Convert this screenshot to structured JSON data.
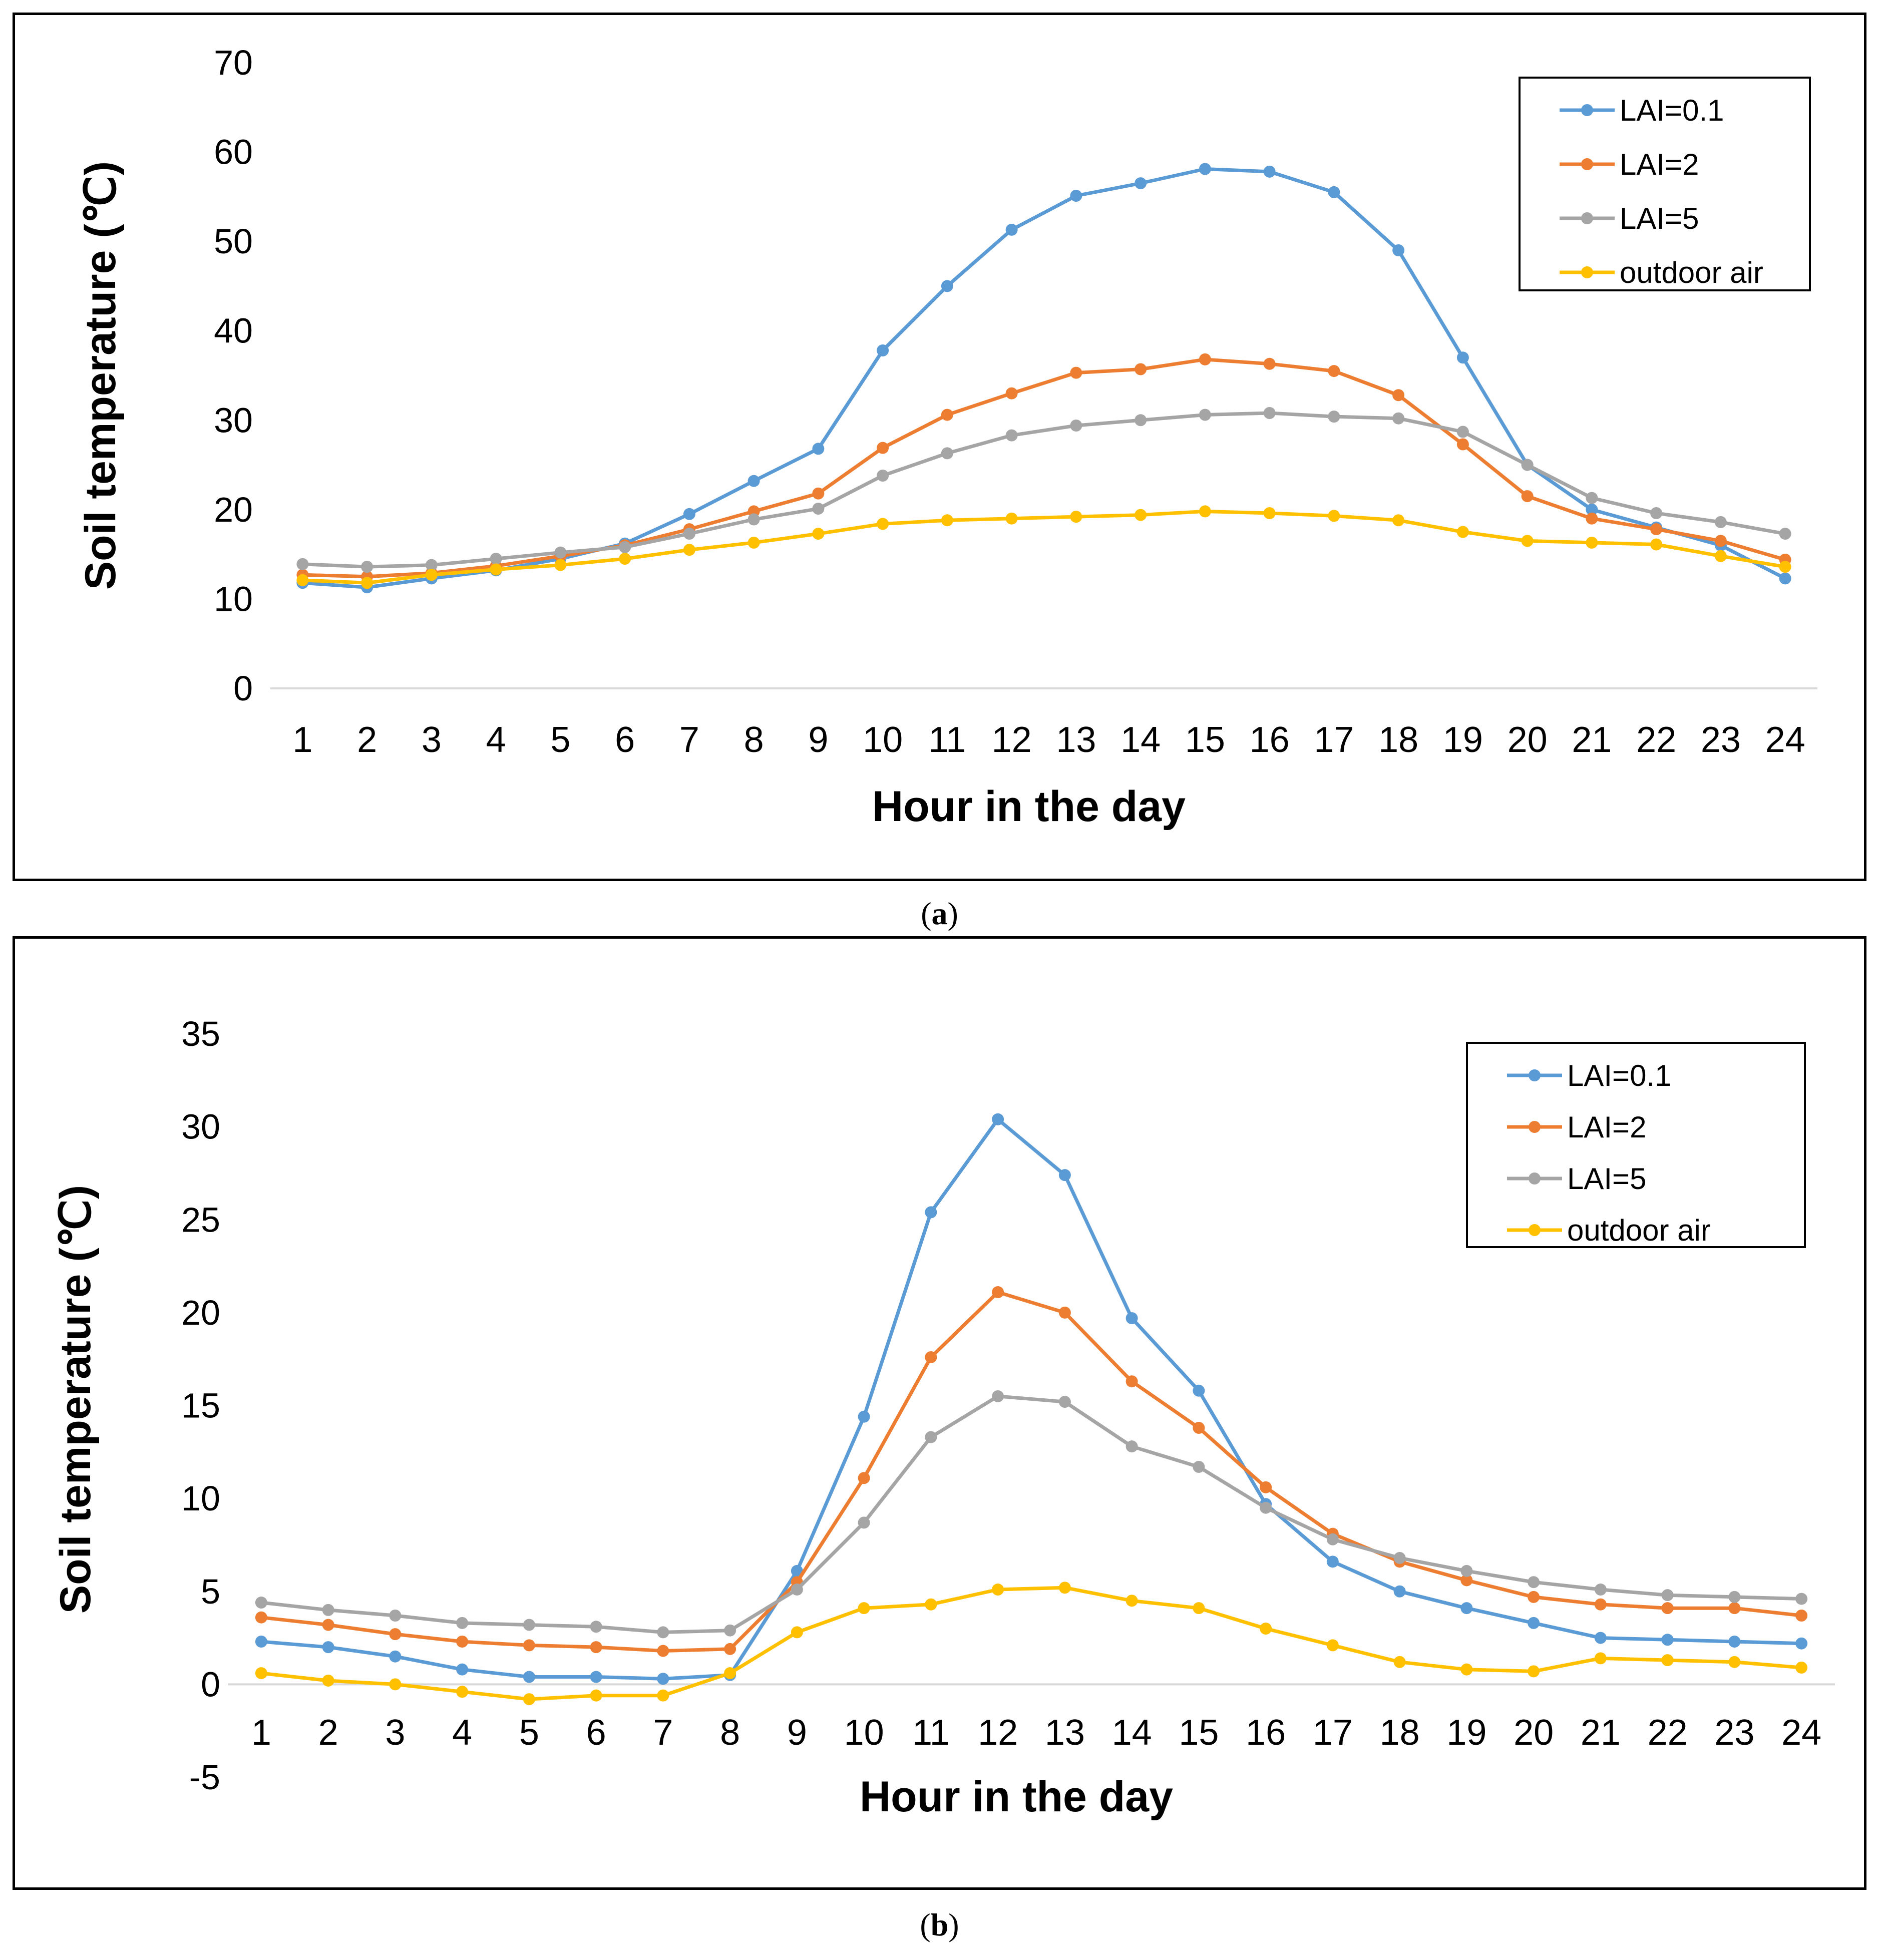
{
  "chart_data": [
    {
      "type": "line",
      "panel": "a",
      "caption": "a",
      "xlabel": "Hour in  the day",
      "ylabel": "Soil temperature (℃)",
      "categories": [
        "1",
        "2",
        "3",
        "4",
        "5",
        "6",
        "7",
        "8",
        "9",
        "10",
        "11",
        "12",
        "13",
        "14",
        "15",
        "16",
        "17",
        "18",
        "19",
        "20",
        "21",
        "22",
        "23",
        "24"
      ],
      "yticks": [
        "0",
        "10",
        "20",
        "30",
        "40",
        "50",
        "60",
        "70"
      ],
      "ylim": [
        0,
        70
      ],
      "legend_position": "top-right",
      "series": [
        {
          "name": "LAI=0.1",
          "color": "#5b9bd5",
          "values": [
            11.8,
            11.3,
            12.3,
            13.2,
            14.5,
            16.2,
            19.5,
            23.2,
            26.8,
            37.8,
            45,
            51.3,
            55.1,
            56.5,
            58.1,
            57.8,
            55.5,
            49,
            37,
            25,
            20,
            18,
            16,
            12.3
          ]
        },
        {
          "name": "LAI=2",
          "color": "#ed7d31",
          "values": [
            12.7,
            12.5,
            12.9,
            13.7,
            14.8,
            16,
            17.8,
            19.8,
            21.8,
            26.9,
            30.6,
            33,
            35.3,
            35.7,
            36.8,
            36.3,
            35.5,
            32.8,
            27.3,
            21.5,
            19,
            17.8,
            16.5,
            14.4
          ]
        },
        {
          "name": "LAI=5",
          "color": "#a5a5a5",
          "values": [
            13.9,
            13.6,
            13.8,
            14.5,
            15.2,
            15.8,
            17.3,
            18.9,
            20.1,
            23.8,
            26.3,
            28.3,
            29.4,
            30,
            30.6,
            30.8,
            30.4,
            30.2,
            28.7,
            25,
            21.3,
            19.6,
            18.6,
            17.3
          ]
        },
        {
          "name": "outdoor air",
          "color": "#ffc000",
          "values": [
            12.1,
            11.8,
            12.7,
            13.3,
            13.8,
            14.5,
            15.5,
            16.3,
            17.3,
            18.4,
            18.8,
            19,
            19.2,
            19.4,
            19.8,
            19.6,
            19.3,
            18.8,
            17.5,
            16.5,
            16.3,
            16.1,
            14.8,
            13.6
          ]
        }
      ]
    },
    {
      "type": "line",
      "panel": "b",
      "caption": "b",
      "xlabel": "Hour in the day",
      "ylabel": "Soil temperature (℃)",
      "categories": [
        "1",
        "2",
        "3",
        "4",
        "5",
        "6",
        "7",
        "8",
        "9",
        "10",
        "11",
        "12",
        "13",
        "14",
        "15",
        "16",
        "17",
        "18",
        "19",
        "20",
        "21",
        "22",
        "23",
        "24"
      ],
      "yticks": [
        "-5",
        "0",
        "5",
        "10",
        "15",
        "20",
        "25",
        "30",
        "35"
      ],
      "ylim": [
        -5,
        35
      ],
      "legend_position": "top-right",
      "series": [
        {
          "name": "LAI=0.1",
          "color": "#5b9bd5",
          "values": [
            2.3,
            2,
            1.5,
            0.8,
            0.4,
            0.4,
            0.3,
            0.5,
            6.1,
            14.4,
            25.4,
            30.4,
            27.4,
            19.7,
            15.8,
            9.7,
            6.6,
            5,
            4.1,
            3.3,
            2.5,
            2.4,
            2.3,
            2.2
          ]
        },
        {
          "name": "LAI=2",
          "color": "#ed7d31",
          "values": [
            3.6,
            3.2,
            2.7,
            2.3,
            2.1,
            2,
            1.8,
            1.9,
            5.5,
            11.1,
            17.6,
            21.1,
            20,
            16.3,
            13.8,
            10.6,
            8.1,
            6.6,
            5.6,
            4.7,
            4.3,
            4.1,
            4.1,
            3.7
          ]
        },
        {
          "name": "LAI=5",
          "color": "#a5a5a5",
          "values": [
            4.4,
            4,
            3.7,
            3.3,
            3.2,
            3.1,
            2.8,
            2.9,
            5.1,
            8.7,
            13.3,
            15.5,
            15.2,
            12.8,
            11.7,
            9.5,
            7.8,
            6.8,
            6.1,
            5.5,
            5.1,
            4.8,
            4.7,
            4.6
          ]
        },
        {
          "name": "outdoor air",
          "color": "#ffc000",
          "values": [
            0.6,
            0.2,
            0,
            -0.4,
            -0.8,
            -0.6,
            -0.6,
            0.6,
            2.8,
            4.1,
            4.3,
            5.1,
            5.2,
            4.5,
            4.1,
            3,
            2.1,
            1.2,
            0.8,
            0.7,
            1.4,
            1.3,
            1.2,
            0.9
          ]
        }
      ]
    }
  ]
}
